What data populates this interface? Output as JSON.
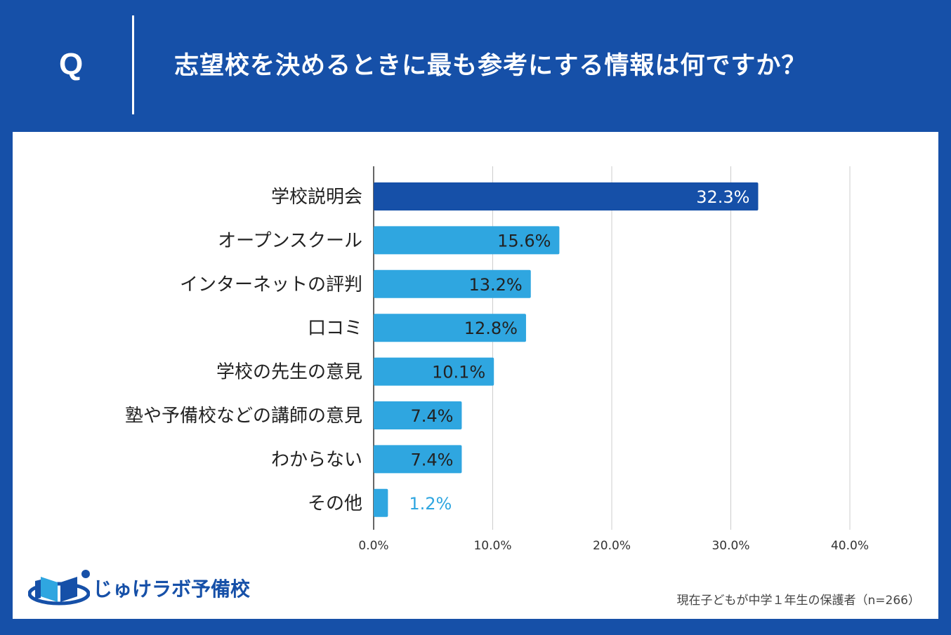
{
  "header": {
    "q_mark": "Q",
    "question": "志望校を決めるときに最も参考にする情報は何ですか？"
  },
  "chart_data": {
    "type": "bar",
    "orientation": "horizontal",
    "title": "志望校を決めるときに最も参考にする情報は何ですか？",
    "categories": [
      "学校説明会",
      "オープンスクール",
      "インターネットの評判",
      "口コミ",
      "学校の先生の意見",
      "塾や予備校などの講師の意見",
      "わからない",
      "その他"
    ],
    "values": [
      32.3,
      15.6,
      13.2,
      12.8,
      10.1,
      7.4,
      7.4,
      1.2
    ],
    "value_labels": [
      "32.3%",
      "15.6%",
      "13.2%",
      "12.8%",
      "10.1%",
      "7.4%",
      "7.4%",
      "1.2%"
    ],
    "xlim": [
      0,
      40
    ],
    "xticks": [
      "0.0%",
      "10.0%",
      "20.0%",
      "30.0%",
      "40.0%"
    ],
    "xtick_values": [
      0,
      10,
      20,
      30,
      40
    ],
    "grid": true,
    "colors": {
      "highlight": "#1650a8",
      "default": "#2fa6e0",
      "label_on_highlight": "#ffffff",
      "label_on_bar": "#222222",
      "label_outside": "#2fa6e0"
    }
  },
  "logo": {
    "text": "じゅけラボ予備校",
    "icon": "book-logo-icon"
  },
  "footnote": "現在子どもが中学１年生の保護者（n=266）"
}
